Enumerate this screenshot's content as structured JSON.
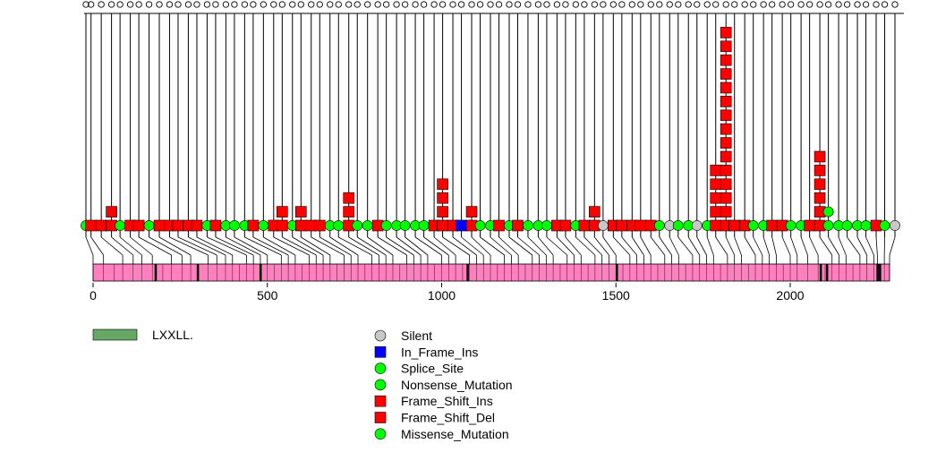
{
  "chart_data": {
    "type": "lollipop",
    "title": "",
    "protein_length": 2285,
    "x_ticks": [
      0,
      500,
      1000,
      1500,
      2000
    ],
    "x_tick_labels": [
      "0",
      "500",
      "1000",
      "1500",
      "2000"
    ],
    "domains": [
      {
        "name": "LXXLL.",
        "label": "LXXLL.",
        "positions": [
          179,
          300,
          480,
          1074,
          1502,
          2087,
          2105,
          2250,
          2257
        ]
      }
    ],
    "track_color": "#ff7fbf",
    "lollipops": [
      {
        "pos": -15,
        "type": "Missense_Mutation",
        "count": 1
      },
      {
        "pos": 0,
        "type": "Frame_Shift_Del",
        "count": 1
      },
      {
        "pos": 30,
        "type": "Frame_Shift_Del",
        "count": 1
      },
      {
        "pos": 60,
        "type": "Frame_Shift_Ins",
        "count": 2
      },
      {
        "pos": 85,
        "type": "Missense_Mutation",
        "count": 1
      },
      {
        "pos": 115,
        "type": "Frame_Shift_Del",
        "count": 1
      },
      {
        "pos": 140,
        "type": "Frame_Shift_Del",
        "count": 1
      },
      {
        "pos": 170,
        "type": "Missense_Mutation",
        "count": 1
      },
      {
        "pos": 200,
        "type": "Frame_Shift_Del",
        "count": 1
      },
      {
        "pos": 230,
        "type": "Frame_Shift_Del",
        "count": 1
      },
      {
        "pos": 255,
        "type": "Frame_Shift_Del",
        "count": 1
      },
      {
        "pos": 285,
        "type": "Frame_Shift_Del",
        "count": 1
      },
      {
        "pos": 310,
        "type": "Frame_Shift_Del",
        "count": 1
      },
      {
        "pos": 340,
        "type": "Missense_Mutation",
        "count": 1
      },
      {
        "pos": 365,
        "type": "Frame_Shift_Del",
        "count": 1
      },
      {
        "pos": 395,
        "type": "Missense_Mutation",
        "count": 1
      },
      {
        "pos": 420,
        "type": "Missense_Mutation",
        "count": 1
      },
      {
        "pos": 450,
        "type": "Missense_Mutation",
        "count": 1
      },
      {
        "pos": 475,
        "type": "Frame_Shift_Del",
        "count": 1
      },
      {
        "pos": 505,
        "type": "Missense_Mutation",
        "count": 1
      },
      {
        "pos": 535,
        "type": "Frame_Shift_Del",
        "count": 1
      },
      {
        "pos": 560,
        "type": "Frame_Shift_Ins",
        "count": 2
      },
      {
        "pos": 590,
        "type": "Missense_Mutation",
        "count": 1
      },
      {
        "pos": 615,
        "type": "Frame_Shift_Ins",
        "count": 2
      },
      {
        "pos": 645,
        "type": "Frame_Shift_Del",
        "count": 1
      },
      {
        "pos": 670,
        "type": "Frame_Shift_Del",
        "count": 1
      },
      {
        "pos": 700,
        "type": "Missense_Mutation",
        "count": 1
      },
      {
        "pos": 725,
        "type": "Missense_Mutation",
        "count": 1
      },
      {
        "pos": 755,
        "type": "Frame_Shift_Ins",
        "count": 3
      },
      {
        "pos": 780,
        "type": "Missense_Mutation",
        "count": 1
      },
      {
        "pos": 810,
        "type": "Missense_Mutation",
        "count": 1
      },
      {
        "pos": 840,
        "type": "Frame_Shift_Del",
        "count": 1
      },
      {
        "pos": 865,
        "type": "Missense_Mutation",
        "count": 1
      },
      {
        "pos": 895,
        "type": "Missense_Mutation",
        "count": 1
      },
      {
        "pos": 920,
        "type": "Missense_Mutation",
        "count": 1
      },
      {
        "pos": 950,
        "type": "Missense_Mutation",
        "count": 1
      },
      {
        "pos": 975,
        "type": "Missense_Mutation",
        "count": 1
      },
      {
        "pos": 1005,
        "type": "Frame_Shift_Del",
        "count": 1
      },
      {
        "pos": 1030,
        "type": "Frame_Shift_Ins",
        "count": 4
      },
      {
        "pos": 1060,
        "type": "Frame_Shift_Del",
        "count": 1
      },
      {
        "pos": 1085,
        "type": "In_Frame_Ins",
        "count": 1
      },
      {
        "pos": 1115,
        "type": "Frame_Shift_Ins",
        "count": 2
      },
      {
        "pos": 1140,
        "type": "Missense_Mutation",
        "count": 1
      },
      {
        "pos": 1170,
        "type": "Missense_Mutation",
        "count": 1
      },
      {
        "pos": 1195,
        "type": "Frame_Shift_Del",
        "count": 1
      },
      {
        "pos": 1225,
        "type": "Missense_Mutation",
        "count": 1
      },
      {
        "pos": 1250,
        "type": "Frame_Shift_Del",
        "count": 1
      },
      {
        "pos": 1280,
        "type": "Missense_Mutation",
        "count": 1
      },
      {
        "pos": 1310,
        "type": "Missense_Mutation",
        "count": 1
      },
      {
        "pos": 1335,
        "type": "Missense_Mutation",
        "count": 1
      },
      {
        "pos": 1365,
        "type": "Frame_Shift_Del",
        "count": 1
      },
      {
        "pos": 1390,
        "type": "Frame_Shift_Del",
        "count": 1
      },
      {
        "pos": 1420,
        "type": "Missense_Mutation",
        "count": 1
      },
      {
        "pos": 1445,
        "type": "Frame_Shift_Del",
        "count": 1
      },
      {
        "pos": 1475,
        "type": "Frame_Shift_Ins",
        "count": 2
      },
      {
        "pos": 1500,
        "type": "Silent",
        "count": 1
      },
      {
        "pos": 1530,
        "type": "Frame_Shift_Del",
        "count": 1
      },
      {
        "pos": 1555,
        "type": "Frame_Shift_Del",
        "count": 1
      },
      {
        "pos": 1585,
        "type": "Frame_Shift_Del",
        "count": 1
      },
      {
        "pos": 1610,
        "type": "Frame_Shift_Del",
        "count": 1
      },
      {
        "pos": 1640,
        "type": "Frame_Shift_Del",
        "count": 1
      },
      {
        "pos": 1665,
        "type": "Missense_Mutation",
        "count": 1
      },
      {
        "pos": 1695,
        "type": "Silent",
        "count": 1
      },
      {
        "pos": 1720,
        "type": "Missense_Mutation",
        "count": 1
      },
      {
        "pos": 1750,
        "type": "Missense_Mutation",
        "count": 1
      },
      {
        "pos": 1775,
        "type": "Silent",
        "count": 1
      },
      {
        "pos": 1805,
        "type": "Missense_Mutation",
        "count": 1
      },
      {
        "pos": 1830,
        "type": "Frame_Shift_Ins",
        "count": 5
      },
      {
        "pos": 1860,
        "type": "Frame_Shift_Ins",
        "count": 15
      },
      {
        "pos": 1885,
        "type": "Frame_Shift_Del",
        "count": 1
      },
      {
        "pos": 1915,
        "type": "Frame_Shift_Del",
        "count": 1
      },
      {
        "pos": 1940,
        "type": "Missense_Mutation",
        "count": 1
      },
      {
        "pos": 1970,
        "type": "Missense_Mutation",
        "count": 1
      },
      {
        "pos": 1995,
        "type": "Frame_Shift_Del",
        "count": 1
      },
      {
        "pos": 2025,
        "type": "Frame_Shift_Del",
        "count": 1
      },
      {
        "pos": 2050,
        "type": "Missense_Mutation",
        "count": 1
      },
      {
        "pos": 2080,
        "type": "Missense_Mutation",
        "count": 1
      },
      {
        "pos": 2105,
        "type": "Frame_Shift_Del",
        "count": 1
      },
      {
        "pos": 2135,
        "type": "Frame_Shift_Ins",
        "count": 6
      },
      {
        "pos": 2160,
        "type": "Missense_Mutation",
        "count": 2
      },
      {
        "pos": 2190,
        "type": "Missense_Mutation",
        "count": 1
      },
      {
        "pos": 2215,
        "type": "Missense_Mutation",
        "count": 1
      },
      {
        "pos": 2245,
        "type": "Missense_Mutation",
        "count": 1
      },
      {
        "pos": 2270,
        "type": "Missense_Mutation",
        "count": 1
      },
      {
        "pos": 2300,
        "type": "Frame_Shift_Del",
        "count": 1
      },
      {
        "pos": 2325,
        "type": "Missense_Mutation",
        "count": 1
      },
      {
        "pos": 2355,
        "type": "Silent",
        "count": 1
      }
    ],
    "track_pointer_positions": [
      0,
      30,
      60,
      85,
      115,
      140,
      170,
      200,
      225,
      255,
      280,
      300,
      330,
      355,
      380,
      400,
      420,
      440,
      460,
      480,
      500,
      520,
      540,
      560,
      580,
      600,
      620,
      640,
      660,
      680,
      700,
      720,
      740,
      760,
      780,
      800,
      820,
      840,
      860,
      880,
      900,
      920,
      940,
      960,
      980,
      1000,
      1020,
      1040,
      1060,
      1080,
      1100,
      1120,
      1140,
      1160,
      1180,
      1200,
      1220,
      1240,
      1260,
      1280,
      1300,
      1320,
      1340,
      1360,
      1380,
      1400,
      1420,
      1440,
      1460,
      1480,
      1500,
      1520,
      1540,
      1560,
      1580,
      1600,
      1620,
      1640,
      1660,
      1680,
      1700,
      1720,
      1740,
      1760,
      1780,
      1800,
      1820,
      1840,
      1860,
      1880,
      1900,
      1920,
      1940,
      1960,
      1980,
      2000,
      2020,
      2050,
      2080,
      2100,
      2120,
      2140,
      2160,
      2180,
      2200,
      2220,
      2240,
      2250,
      2260,
      2270,
      2285
    ],
    "legend": {
      "domains": [
        {
          "label": "LXXLL.",
          "color": "#66a866"
        }
      ],
      "mutations": [
        {
          "label": "Silent",
          "shape": "circle",
          "color": "#c8c8c8"
        },
        {
          "label": "In_Frame_Ins",
          "shape": "square",
          "color": "#0000ff"
        },
        {
          "label": "Splice_Site",
          "shape": "circle",
          "color": "#00ff00"
        },
        {
          "label": "Nonsense_Mutation",
          "shape": "circle",
          "color": "#00ff00"
        },
        {
          "label": "Frame_Shift_Ins",
          "shape": "square",
          "color": "#ff0000"
        },
        {
          "label": "Frame_Shift_Del",
          "shape": "square",
          "color": "#ff0000"
        },
        {
          "label": "Missense_Mutation",
          "shape": "circle",
          "color": "#00ff00"
        }
      ]
    },
    "type_colors": {
      "Silent": "#c8c8c8",
      "In_Frame_Ins": "#0000ff",
      "Splice_Site": "#00ff00",
      "Nonsense_Mutation": "#00ff00",
      "Frame_Shift_Ins": "#ff0000",
      "Frame_Shift_Del": "#ff0000",
      "Missense_Mutation": "#00ff00"
    },
    "type_shapes": {
      "Silent": "circle",
      "In_Frame_Ins": "square",
      "Splice_Site": "circle",
      "Nonsense_Mutation": "circle",
      "Frame_Shift_Ins": "square",
      "Frame_Shift_Del": "square",
      "Missense_Mutation": "circle"
    }
  }
}
